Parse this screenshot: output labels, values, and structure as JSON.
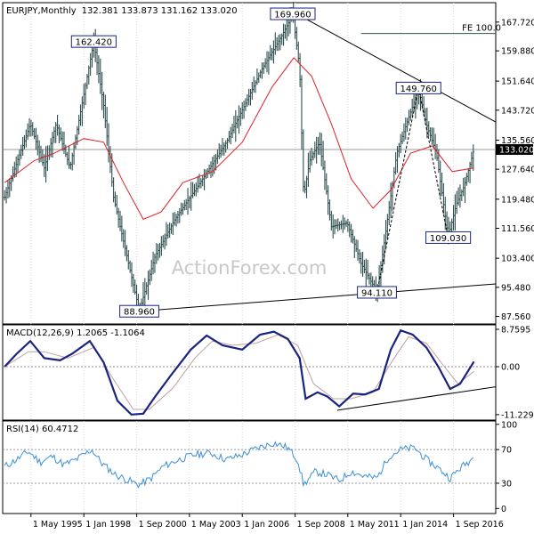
{
  "header": {
    "symbol": "EURJPY,Monthly",
    "ohlc": "132.381 133.873 131.162 133.020"
  },
  "watermark": "ActionForex.com",
  "colors": {
    "bars": "#2f4f4f",
    "ma": "#e0202a",
    "macd": "#1a237e",
    "signal": "#c0a0a0",
    "rsi": "#3a8fd8",
    "trend": "#000000",
    "label_border": "#1a237e"
  },
  "chart_data": [
    {
      "type": "ohlc",
      "panel": "price",
      "ylim": [
        85.5,
        173
      ],
      "price_ticks": [
        "167.720",
        "159.880",
        "151.640",
        "143.720",
        "135.560",
        "127.640",
        "119.480",
        "111.560",
        "103.400",
        "95.480",
        "87.560"
      ],
      "current_price": "133.020",
      "fe_label": "FE 100.0",
      "fe_level": 164.6,
      "annotations": [
        {
          "text": "162.420",
          "value": 162.42,
          "date": 1998.5
        },
        {
          "text": "88.960",
          "value": 88.96,
          "date": 2000.8
        },
        {
          "text": "169.960",
          "value": 169.96,
          "date": 2008.55
        },
        {
          "text": "149.760",
          "value": 149.76,
          "date": 2014.9
        },
        {
          "text": "94.110",
          "value": 94.11,
          "date": 2012.8
        },
        {
          "text": "109.030",
          "value": 109.03,
          "date": 2016.4
        }
      ],
      "x_labels": [
        "1 May 1995",
        "1 Jan 1998",
        "1 Sep 2000",
        "1 May 2003",
        "1 Jan 2006",
        "1 Sep 2008",
        "1 May 2011",
        "1 Jan 2014",
        "1 Sep 2016"
      ],
      "x_label_dates": [
        1995.33,
        1998.0,
        2000.67,
        2003.33,
        2006.0,
        2008.67,
        2011.33,
        2014.0,
        2016.67
      ],
      "pivots": [
        {
          "date": 1994.0,
          "value": 120
        },
        {
          "date": 1995.3,
          "value": 140
        },
        {
          "date": 1996.0,
          "value": 128
        },
        {
          "date": 1996.6,
          "value": 140
        },
        {
          "date": 1997.3,
          "value": 128
        },
        {
          "date": 1998.5,
          "value": 162.4
        },
        {
          "date": 1999.0,
          "value": 145
        },
        {
          "date": 1999.5,
          "value": 120
        },
        {
          "date": 2000.8,
          "value": 89
        },
        {
          "date": 2001.6,
          "value": 104
        },
        {
          "date": 2002.6,
          "value": 114
        },
        {
          "date": 2004.0,
          "value": 125
        },
        {
          "date": 2005.2,
          "value": 135
        },
        {
          "date": 2006.2,
          "value": 146
        },
        {
          "date": 2007.0,
          "value": 155
        },
        {
          "date": 2008.0,
          "value": 164
        },
        {
          "date": 2008.55,
          "value": 169.9
        },
        {
          "date": 2008.9,
          "value": 155
        },
        {
          "date": 2009.1,
          "value": 120
        },
        {
          "date": 2009.4,
          "value": 130
        },
        {
          "date": 2009.9,
          "value": 135
        },
        {
          "date": 2010.5,
          "value": 112
        },
        {
          "date": 2011.3,
          "value": 113
        },
        {
          "date": 2012.0,
          "value": 102
        },
        {
          "date": 2012.8,
          "value": 94.2
        },
        {
          "date": 2013.1,
          "value": 105
        },
        {
          "date": 2013.8,
          "value": 132
        },
        {
          "date": 2014.3,
          "value": 140
        },
        {
          "date": 2014.9,
          "value": 149.6
        },
        {
          "date": 2015.3,
          "value": 140
        },
        {
          "date": 2015.8,
          "value": 132
        },
        {
          "date": 2016.4,
          "value": 109.1
        },
        {
          "date": 2016.8,
          "value": 118
        },
        {
          "date": 2017.2,
          "value": 123
        },
        {
          "date": 2017.7,
          "value": 133.0
        }
      ],
      "ma": [
        {
          "date": 1994.0,
          "value": 124
        },
        {
          "date": 1995.5,
          "value": 130
        },
        {
          "date": 1996.5,
          "value": 132
        },
        {
          "date": 1998.0,
          "value": 136
        },
        {
          "date": 1999.0,
          "value": 135
        },
        {
          "date": 2000.0,
          "value": 124
        },
        {
          "date": 2001.0,
          "value": 114
        },
        {
          "date": 2001.9,
          "value": 116
        },
        {
          "date": 2003.0,
          "value": 124
        },
        {
          "date": 2004.5,
          "value": 127
        },
        {
          "date": 2006.0,
          "value": 135
        },
        {
          "date": 2007.5,
          "value": 150
        },
        {
          "date": 2008.6,
          "value": 158
        },
        {
          "date": 2009.5,
          "value": 153
        },
        {
          "date": 2010.5,
          "value": 140
        },
        {
          "date": 2011.5,
          "value": 125
        },
        {
          "date": 2012.6,
          "value": 117
        },
        {
          "date": 2013.5,
          "value": 122
        },
        {
          "date": 2014.5,
          "value": 132
        },
        {
          "date": 2015.6,
          "value": 134
        },
        {
          "date": 2016.6,
          "value": 127
        },
        {
          "date": 2017.7,
          "value": 128
        }
      ],
      "trendlines": [
        {
          "from": {
            "date": 2008.55,
            "value": 170.5
          },
          "to": {
            "date": 2018.8,
            "value": 140.5
          }
        },
        {
          "from": {
            "date": 2000.8,
            "value": 88.96
          },
          "to": {
            "date": 2018.8,
            "value": 96.4
          }
        }
      ],
      "dashed_lines": [
        {
          "from": {
            "date": 2012.8,
            "value": 94.11
          },
          "to": {
            "date": 2014.9,
            "value": 149.76
          }
        },
        {
          "from": {
            "date": 2014.9,
            "value": 149.76
          },
          "to": {
            "date": 2016.4,
            "value": 109.03
          }
        }
      ]
    },
    {
      "type": "line",
      "panel": "macd",
      "title": "MACD(12,26,9) 1.2065 -1.1064",
      "ylim": [
        -12.5,
        9.8
      ],
      "ticks": [
        "8.7595",
        "0.00",
        "-11.2299"
      ],
      "tick_values": [
        8.7595,
        0,
        -11.2299
      ],
      "series": [
        {
          "points": [
            {
              "date": 1994.0,
              "value": 0
            },
            {
              "date": 1994.6,
              "value": 3
            },
            {
              "date": 1995.3,
              "value": 6
            },
            {
              "date": 1996.0,
              "value": 2
            },
            {
              "date": 1996.8,
              "value": 1.5
            },
            {
              "date": 1997.4,
              "value": 3
            },
            {
              "date": 1998.3,
              "value": 6
            },
            {
              "date": 1999.0,
              "value": 1
            },
            {
              "date": 1999.7,
              "value": -8
            },
            {
              "date": 2000.4,
              "value": -11.2
            },
            {
              "date": 2001.0,
              "value": -11
            },
            {
              "date": 2001.6,
              "value": -7
            },
            {
              "date": 2002.4,
              "value": -2
            },
            {
              "date": 2003.4,
              "value": 4
            },
            {
              "date": 2004.2,
              "value": 7.3
            },
            {
              "date": 2005.0,
              "value": 5
            },
            {
              "date": 2006.0,
              "value": 4
            },
            {
              "date": 2006.9,
              "value": 7.5
            },
            {
              "date": 2007.6,
              "value": 8.2
            },
            {
              "date": 2008.3,
              "value": 6.5
            },
            {
              "date": 2008.9,
              "value": 2
            },
            {
              "date": 2009.2,
              "value": -7.5
            },
            {
              "date": 2009.8,
              "value": -6
            },
            {
              "date": 2010.3,
              "value": -7
            },
            {
              "date": 2010.9,
              "value": -9.3
            },
            {
              "date": 2011.6,
              "value": -6.3
            },
            {
              "date": 2012.2,
              "value": -6.5
            },
            {
              "date": 2012.9,
              "value": -5.2
            },
            {
              "date": 2013.5,
              "value": 4
            },
            {
              "date": 2014.0,
              "value": 8.5
            },
            {
              "date": 2014.6,
              "value": 7.5
            },
            {
              "date": 2015.3,
              "value": 4.5
            },
            {
              "date": 2015.9,
              "value": 0
            },
            {
              "date": 2016.5,
              "value": -5.2
            },
            {
              "date": 2017.0,
              "value": -4
            },
            {
              "date": 2017.7,
              "value": 1.2
            }
          ]
        },
        {
          "points": [
            {
              "date": 1994.0,
              "value": 0
            },
            {
              "date": 1995.2,
              "value": 3.5
            },
            {
              "date": 1996.0,
              "value": 3.5
            },
            {
              "date": 1997.2,
              "value": 2
            },
            {
              "date": 1998.5,
              "value": 4.5
            },
            {
              "date": 1999.5,
              "value": -3
            },
            {
              "date": 2000.5,
              "value": -10
            },
            {
              "date": 2001.3,
              "value": -10
            },
            {
              "date": 2002.5,
              "value": -5
            },
            {
              "date": 2003.6,
              "value": 2
            },
            {
              "date": 2004.5,
              "value": 6
            },
            {
              "date": 2005.5,
              "value": 5
            },
            {
              "date": 2006.7,
              "value": 5.5
            },
            {
              "date": 2007.8,
              "value": 7.5
            },
            {
              "date": 2008.8,
              "value": 5
            },
            {
              "date": 2009.6,
              "value": -4
            },
            {
              "date": 2010.6,
              "value": -7.5
            },
            {
              "date": 2011.5,
              "value": -7.5
            },
            {
              "date": 2012.6,
              "value": -6
            },
            {
              "date": 2013.6,
              "value": 1.5
            },
            {
              "date": 2014.4,
              "value": 7
            },
            {
              "date": 2015.3,
              "value": 5.5
            },
            {
              "date": 2016.2,
              "value": 0
            },
            {
              "date": 2016.9,
              "value": -4
            },
            {
              "date": 2017.7,
              "value": -1.1
            }
          ]
        }
      ],
      "trendline": {
        "from": {
          "date": 2010.8,
          "value": -10.2
        },
        "to": {
          "date": 2018.8,
          "value": -4.7
        }
      }
    },
    {
      "type": "line",
      "panel": "rsi",
      "title": "RSI(14) 60.4712",
      "ylim": [
        0,
        100
      ],
      "ticks": [
        "100",
        "70",
        "30",
        "0"
      ],
      "tick_values": [
        100,
        70,
        30,
        0
      ],
      "guides": [
        70,
        30
      ],
      "series": [
        {
          "points": [
            {
              "date": 1994.0,
              "value": 50
            },
            {
              "date": 1994.6,
              "value": 58
            },
            {
              "date": 1995.2,
              "value": 68
            },
            {
              "date": 1995.8,
              "value": 55
            },
            {
              "date": 1996.4,
              "value": 62
            },
            {
              "date": 1997.0,
              "value": 52
            },
            {
              "date": 1997.6,
              "value": 58
            },
            {
              "date": 1998.4,
              "value": 70
            },
            {
              "date": 1998.9,
              "value": 54
            },
            {
              "date": 1999.6,
              "value": 40
            },
            {
              "date": 2000.2,
              "value": 34
            },
            {
              "date": 2000.8,
              "value": 28
            },
            {
              "date": 2001.4,
              "value": 36
            },
            {
              "date": 2002.0,
              "value": 50
            },
            {
              "date": 2002.8,
              "value": 58
            },
            {
              "date": 2003.6,
              "value": 64
            },
            {
              "date": 2004.4,
              "value": 66
            },
            {
              "date": 2005.2,
              "value": 58
            },
            {
              "date": 2006.0,
              "value": 64
            },
            {
              "date": 2006.8,
              "value": 72
            },
            {
              "date": 2007.6,
              "value": 78
            },
            {
              "date": 2008.3,
              "value": 72
            },
            {
              "date": 2008.8,
              "value": 58
            },
            {
              "date": 2009.1,
              "value": 28
            },
            {
              "date": 2009.7,
              "value": 44
            },
            {
              "date": 2010.3,
              "value": 40
            },
            {
              "date": 2010.9,
              "value": 33
            },
            {
              "date": 2011.5,
              "value": 44
            },
            {
              "date": 2012.2,
              "value": 38
            },
            {
              "date": 2012.8,
              "value": 36
            },
            {
              "date": 2013.4,
              "value": 62
            },
            {
              "date": 2014.0,
              "value": 70
            },
            {
              "date": 2014.7,
              "value": 72
            },
            {
              "date": 2015.3,
              "value": 58
            },
            {
              "date": 2015.9,
              "value": 48
            },
            {
              "date": 2016.5,
              "value": 36
            },
            {
              "date": 2017.0,
              "value": 48
            },
            {
              "date": 2017.7,
              "value": 60.5
            }
          ]
        }
      ]
    }
  ]
}
